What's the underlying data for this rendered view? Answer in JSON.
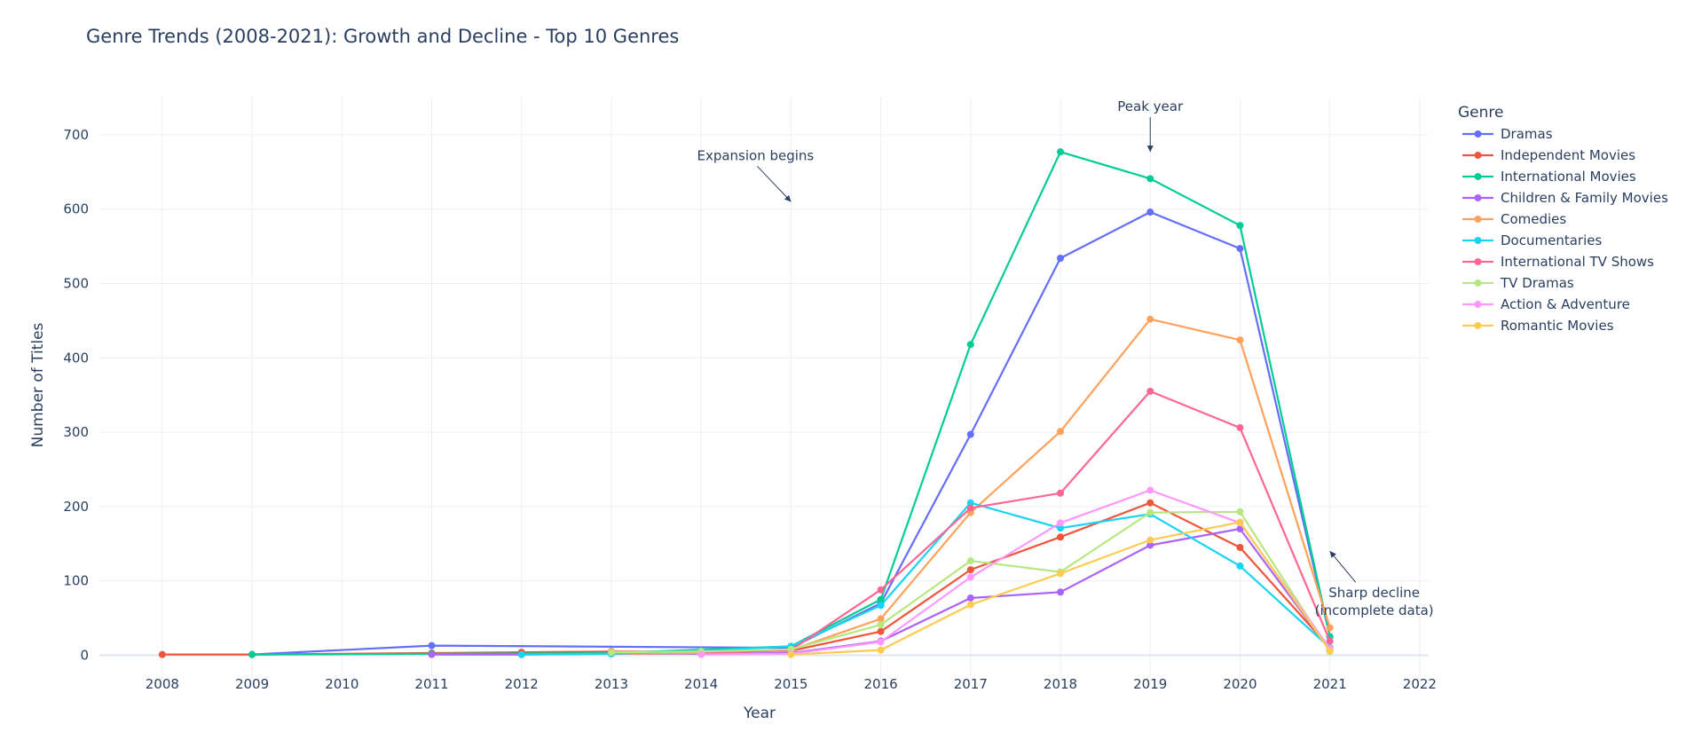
{
  "chart_data": {
    "type": "line",
    "title": "Genre Trends (2008-2021): Growth and Decline - Top 10 Genres",
    "xlabel": "Year",
    "ylabel": "Number of Titles",
    "xlim": [
      2007.3,
      2022.1
    ],
    "ylim": [
      -40,
      750
    ],
    "x_ticks": [
      2008,
      2009,
      2010,
      2011,
      2012,
      2013,
      2014,
      2015,
      2016,
      2017,
      2018,
      2019,
      2020,
      2021,
      2022
    ],
    "y_ticks": [
      0,
      100,
      200,
      300,
      400,
      500,
      600,
      700
    ],
    "grid": true,
    "legend_title": "Genre",
    "legend_position": "right",
    "series": [
      {
        "name": "Dramas",
        "color": "#636efa",
        "points": [
          [
            2009,
            1
          ],
          [
            2011,
            13
          ],
          [
            2015,
            10
          ],
          [
            2016,
            70
          ],
          [
            2017,
            297
          ],
          [
            2018,
            534
          ],
          [
            2019,
            596
          ],
          [
            2020,
            547
          ],
          [
            2021,
            25
          ]
        ]
      },
      {
        "name": "Independent Movies",
        "color": "#ef553b",
        "points": [
          [
            2008,
            1
          ],
          [
            2009,
            1
          ],
          [
            2011,
            3
          ],
          [
            2012,
            4
          ],
          [
            2013,
            5
          ],
          [
            2014,
            5
          ],
          [
            2015,
            6
          ],
          [
            2016,
            32
          ],
          [
            2017,
            115
          ],
          [
            2018,
            159
          ],
          [
            2019,
            205
          ],
          [
            2020,
            145
          ],
          [
            2021,
            10
          ]
        ]
      },
      {
        "name": "International Movies",
        "color": "#00cc96",
        "points": [
          [
            2009,
            1
          ],
          [
            2011,
            2
          ],
          [
            2013,
            3
          ],
          [
            2015,
            12
          ],
          [
            2016,
            75
          ],
          [
            2017,
            418
          ],
          [
            2018,
            677
          ],
          [
            2019,
            641
          ],
          [
            2020,
            578
          ],
          [
            2021,
            25
          ]
        ]
      },
      {
        "name": "Children & Family Movies",
        "color": "#ab63fa",
        "points": [
          [
            2011,
            1
          ],
          [
            2012,
            1
          ],
          [
            2013,
            2
          ],
          [
            2014,
            2
          ],
          [
            2015,
            3
          ],
          [
            2016,
            19
          ],
          [
            2017,
            77
          ],
          [
            2018,
            85
          ],
          [
            2019,
            148
          ],
          [
            2020,
            170
          ],
          [
            2021,
            7
          ]
        ]
      },
      {
        "name": "Comedies",
        "color": "#ffa15a",
        "points": [
          [
            2013,
            2
          ],
          [
            2014,
            3
          ],
          [
            2015,
            7
          ],
          [
            2016,
            49
          ],
          [
            2017,
            192
          ],
          [
            2018,
            301
          ],
          [
            2019,
            452
          ],
          [
            2020,
            424
          ],
          [
            2021,
            37
          ]
        ]
      },
      {
        "name": "Documentaries",
        "color": "#19d3f3",
        "points": [
          [
            2012,
            1
          ],
          [
            2013,
            2
          ],
          [
            2014,
            6
          ],
          [
            2015,
            12
          ],
          [
            2016,
            67
          ],
          [
            2017,
            205
          ],
          [
            2018,
            171
          ],
          [
            2019,
            190
          ],
          [
            2020,
            120
          ],
          [
            2021,
            10
          ]
        ]
      },
      {
        "name": "International TV Shows",
        "color": "#ff6692",
        "points": [
          [
            2014,
            3
          ],
          [
            2015,
            7
          ],
          [
            2016,
            88
          ],
          [
            2017,
            198
          ],
          [
            2018,
            218
          ],
          [
            2019,
            355
          ],
          [
            2020,
            306
          ],
          [
            2021,
            19
          ]
        ]
      },
      {
        "name": "TV Dramas",
        "color": "#b6e880",
        "points": [
          [
            2013,
            4
          ],
          [
            2014,
            5
          ],
          [
            2015,
            8
          ],
          [
            2016,
            41
          ],
          [
            2017,
            127
          ],
          [
            2018,
            112
          ],
          [
            2019,
            192
          ],
          [
            2020,
            193
          ],
          [
            2021,
            5
          ]
        ]
      },
      {
        "name": "Action & Adventure",
        "color": "#ff97ff",
        "points": [
          [
            2014,
            1
          ],
          [
            2015,
            2
          ],
          [
            2016,
            18
          ],
          [
            2017,
            105
          ],
          [
            2018,
            178
          ],
          [
            2019,
            222
          ],
          [
            2020,
            178
          ],
          [
            2021,
            9
          ]
        ]
      },
      {
        "name": "Romantic Movies",
        "color": "#fecb52",
        "points": [
          [
            2015,
            1
          ],
          [
            2016,
            7
          ],
          [
            2017,
            68
          ],
          [
            2018,
            110
          ],
          [
            2019,
            155
          ],
          [
            2020,
            179
          ],
          [
            2021,
            6
          ]
        ]
      }
    ],
    "annotations": [
      {
        "text": [
          "Expansion begins"
        ],
        "x": 2015,
        "y": 610,
        "arrow_dir": "up-left"
      },
      {
        "text": [
          "Peak year"
        ],
        "x": 2019,
        "y": 677,
        "arrow_dir": "up"
      },
      {
        "text": [
          "Sharp decline",
          "(incomplete data)"
        ],
        "x": 2021,
        "y": 140,
        "arrow_dir": "down-right"
      }
    ]
  }
}
